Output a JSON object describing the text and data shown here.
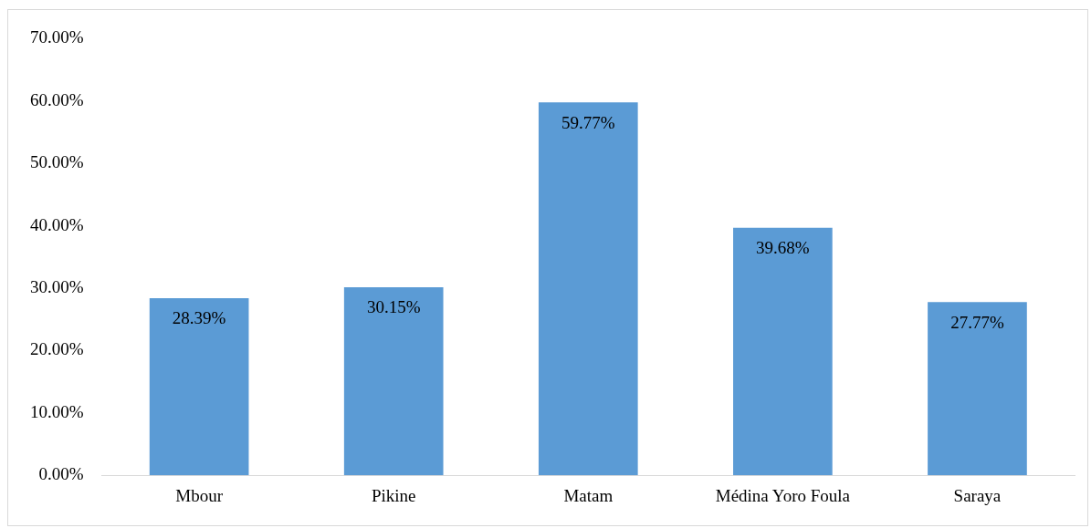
{
  "chart_data": {
    "type": "bar",
    "categories": [
      "Mbour",
      "Pikine",
      "Matam",
      "Médina Yoro Foula",
      "Saraya"
    ],
    "values": [
      28.39,
      30.15,
      59.77,
      39.68,
      27.77
    ],
    "color": "#5b9bd5",
    "value_labels": [
      "28.39%",
      "30.15%",
      "59.77%",
      "39.68%",
      "27.77%"
    ],
    "ylim": [
      0,
      70
    ],
    "yticks": [
      {
        "value": 0,
        "label": "0.00%"
      },
      {
        "value": 10,
        "label": "10.00%"
      },
      {
        "value": 20,
        "label": "20.00%"
      },
      {
        "value": 30,
        "label": "30.00%"
      },
      {
        "value": 40,
        "label": "40.00%"
      },
      {
        "value": 50,
        "label": "50.00%"
      },
      {
        "value": 60,
        "label": "60.00%"
      },
      {
        "value": 70,
        "label": "70.00%"
      }
    ],
    "grid": false,
    "legend": false
  }
}
